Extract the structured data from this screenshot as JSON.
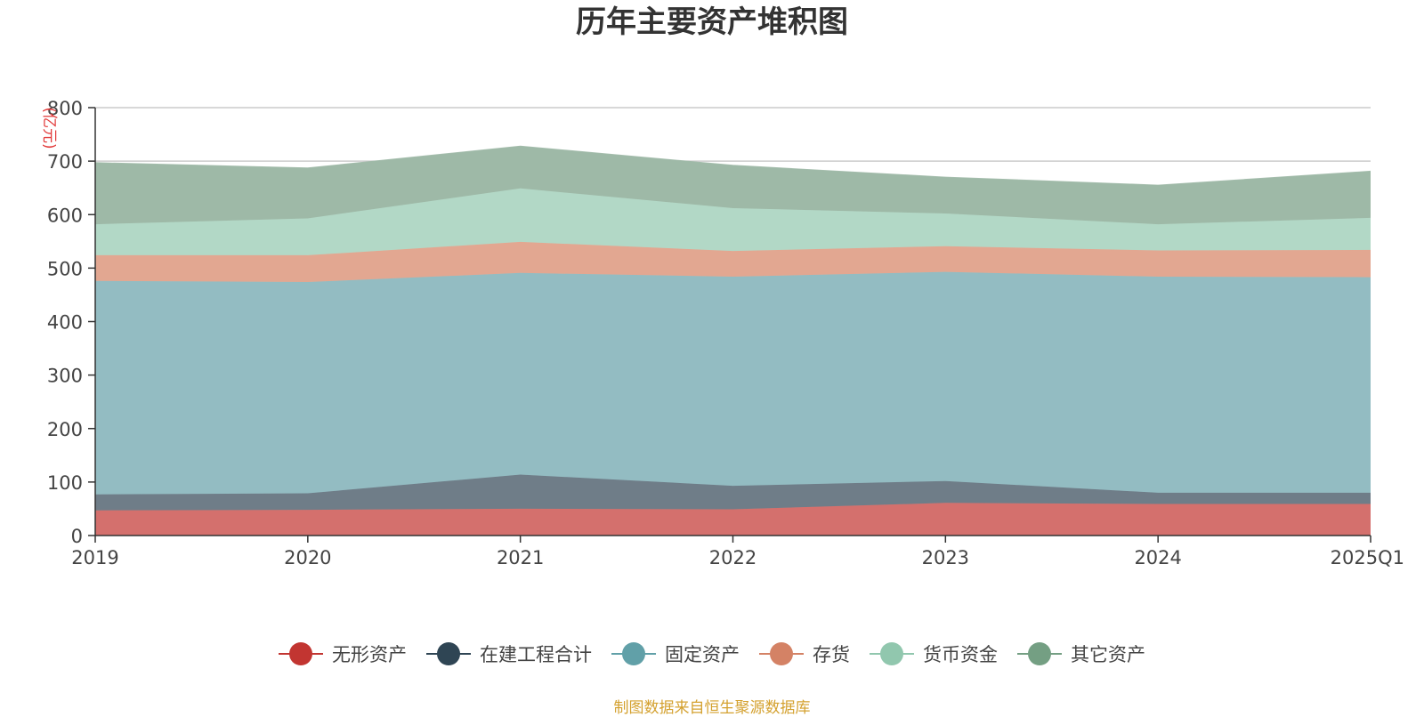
{
  "chart_data": {
    "type": "area",
    "stacked": true,
    "title": "历年主要资产堆积图",
    "unit": "(亿元)",
    "categories": [
      "2019",
      "2020",
      "2021",
      "2022",
      "2023",
      "2024",
      "2025Q1"
    ],
    "ylim": [
      0,
      800
    ],
    "yticks": [
      "0",
      "100",
      "200",
      "300",
      "400",
      "500",
      "600",
      "700",
      "800"
    ],
    "grid": true,
    "legend_position": "bottom",
    "series": [
      {
        "name": "无形资产",
        "color": "#c23531",
        "fill": "#d4706d",
        "values": [
          47,
          48,
          50,
          49,
          61,
          59,
          59
        ]
      },
      {
        "name": "在建工程合计",
        "color": "#2f4554",
        "fill": "#6f7d88",
        "values": [
          30,
          31,
          64,
          44,
          41,
          21,
          21
        ]
      },
      {
        "name": "固定资产",
        "color": "#61a0a8",
        "fill": "#93bcc2",
        "values": [
          399,
          395,
          377,
          391,
          391,
          404,
          403
        ]
      },
      {
        "name": "存货",
        "color": "#d48265",
        "fill": "#e2a791",
        "values": [
          48,
          50,
          58,
          48,
          48,
          49,
          51
        ]
      },
      {
        "name": "货币资金",
        "color": "#91c7ae",
        "fill": "#b2d8c6",
        "values": [
          58,
          69,
          100,
          80,
          61,
          49,
          60
        ]
      },
      {
        "name": "其它资产",
        "color": "#749f83",
        "fill": "#9eb9a7",
        "values": [
          115,
          94,
          79,
          80,
          68,
          73,
          87
        ]
      }
    ]
  },
  "source_text": "制图数据来自恒生聚源数据库"
}
